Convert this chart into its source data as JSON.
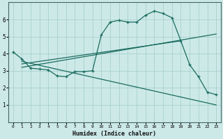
{
  "xlabel": "Humidex (Indice chaleur)",
  "ylabel": "",
  "bg_color": "#cce9e8",
  "line_color": "#1a6b5e",
  "grid_color": "#a8d0ce",
  "xlim": [
    -0.5,
    23.5
  ],
  "ylim": [
    0,
    7
  ],
  "xticks": [
    0,
    1,
    2,
    3,
    4,
    5,
    6,
    7,
    8,
    9,
    10,
    11,
    12,
    13,
    14,
    15,
    16,
    17,
    18,
    19,
    20,
    21,
    22,
    23
  ],
  "yticks": [
    1,
    2,
    3,
    4,
    5,
    6
  ],
  "main_x": [
    0,
    1,
    2,
    3,
    4,
    5,
    6,
    7,
    8,
    9,
    10,
    11,
    12,
    13,
    14,
    15,
    16,
    17,
    18,
    19,
    20,
    21,
    22,
    23
  ],
  "main_y": [
    4.1,
    3.7,
    3.15,
    3.1,
    3.05,
    2.7,
    2.65,
    2.95,
    2.95,
    3.0,
    5.1,
    5.85,
    5.95,
    5.85,
    5.85,
    6.25,
    6.5,
    6.35,
    6.1,
    4.75,
    3.35,
    2.65,
    1.75,
    1.6
  ],
  "line1_x": [
    1,
    19
  ],
  "line1_y": [
    3.4,
    4.75
  ],
  "line2_x": [
    1,
    23
  ],
  "line2_y": [
    3.2,
    5.15
  ],
  "line3_x": [
    1,
    23
  ],
  "line3_y": [
    3.55,
    1.0
  ]
}
